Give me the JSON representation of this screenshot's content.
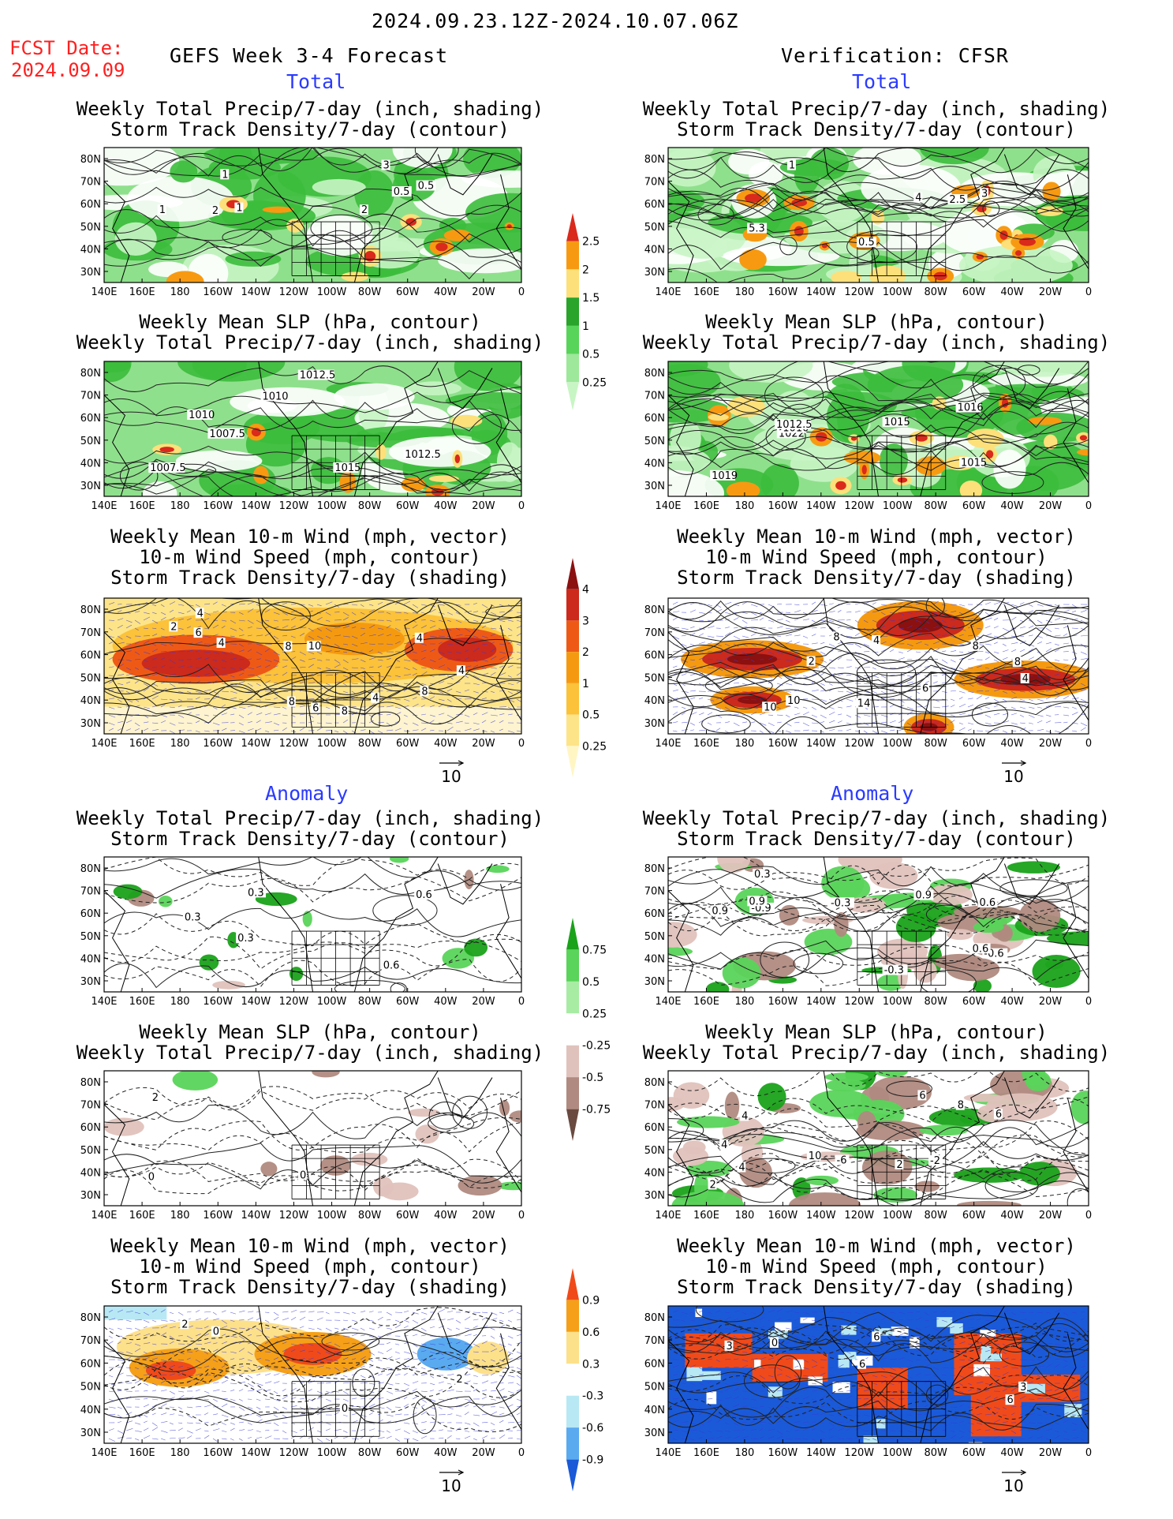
{
  "header": {
    "period": "2024.09.23.12Z-2024.10.07.06Z",
    "fcst_date_label": "FCST Date:",
    "fcst_date": "2024.09.09",
    "left_title": "GEFS Week 3-4 Forecast",
    "right_title": "Verification: CFSR"
  },
  "sections": {
    "total": "Total",
    "anomaly": "Anomaly"
  },
  "panel_titles": {
    "precip_storm": [
      "Weekly Total Precip/7-day (inch, shading)",
      "Storm Track Density/7-day (contour)"
    ],
    "slp_precip": [
      "Weekly Mean SLP (hPa, contour)",
      "Weekly Total Precip/7-day (inch, shading)"
    ],
    "wind_storm": [
      "Weekly Mean 10-m Wind (mph, vector)",
      "10-m Wind Speed (mph, contour)",
      "Storm Track Density/7-day (shading)"
    ]
  },
  "axes": {
    "lon_ticks": [
      "140E",
      "160E",
      "180",
      "160W",
      "140W",
      "120W",
      "100W",
      "80W",
      "60W",
      "40W",
      "20W",
      "0"
    ],
    "lat_ticks": [
      "80N",
      "70N",
      "60N",
      "50N",
      "40N",
      "30N"
    ]
  },
  "vector_ref": "10",
  "colorbars": {
    "total_precip": {
      "labels": [
        "2.5",
        "2",
        "1.5",
        "1",
        "0.5",
        "0.25"
      ],
      "colors": [
        "#d92a1c",
        "#f79a12",
        "#fde07a",
        "#2aa42a",
        "#58d45a",
        "#9de89a",
        "#c8f5c4"
      ]
    },
    "total_storm": {
      "labels": [
        "4",
        "3",
        "2",
        "1",
        "0.5",
        "0.25"
      ],
      "colors": [
        "#8b1010",
        "#cc2a1c",
        "#ee5a16",
        "#f59a10",
        "#fbc23a",
        "#fde488",
        "#fff6c4"
      ]
    },
    "anom_precip": {
      "labels": [
        "0.75",
        "0.5",
        "0.25",
        "-0.25",
        "-0.5",
        "-0.75"
      ],
      "colors": [
        "#1aa21a",
        "#5ad45a",
        "#a8eca4",
        "#ffffff",
        "#e0c2bc",
        "#b08a80",
        "#6a4a40"
      ]
    },
    "anom_storm": {
      "labels": [
        "0.9",
        "0.6",
        "0.3",
        "-0.3",
        "-0.6",
        "-0.9"
      ],
      "colors": [
        "#f04a1a",
        "#f5a018",
        "#fde08a",
        "#ffffff",
        "#b8e8f4",
        "#5aaaf0",
        "#1a5ad8"
      ]
    }
  },
  "contour_labels": {
    "L1": [
      "1",
      "0.5",
      "3",
      "2",
      "1",
      "0.5",
      "2",
      "1"
    ],
    "R1": [
      "5.3",
      "3",
      "4",
      "0.5",
      "1",
      "2.5"
    ],
    "L2": [
      "1010",
      "1007.5",
      "1012.5",
      "1010",
      "1007.5",
      "1012.5",
      "1015"
    ],
    "R2": [
      "1022",
      "1019",
      "1016",
      "1010",
      "1012.5",
      "1015",
      "1015"
    ],
    "L3": [
      "4",
      "4",
      "8",
      "6",
      "4",
      "4",
      "10",
      "8",
      "6",
      "4",
      "8",
      "2",
      "8"
    ],
    "R3": [
      "2",
      "4",
      "4",
      "8",
      "10",
      "8",
      "14",
      "10",
      "8",
      "6"
    ],
    "L4": [
      "0.3",
      "0.6",
      "0.6",
      "0.3",
      "0.3"
    ],
    "R4": [
      "0.9",
      "0.6",
      "0.9",
      "-0.3",
      "-0.9",
      "-0.6",
      "-0.3",
      "0.9",
      "0.3",
      "0.6"
    ],
    "L5": [
      "2",
      "0",
      "0"
    ],
    "R5": [
      "4",
      "2",
      "8",
      "10",
      "4",
      "6",
      "-2",
      "-6",
      "4",
      "2",
      "6"
    ],
    "L6": [
      "2",
      "2",
      "0",
      "0"
    ],
    "R6": [
      "0",
      "3",
      "6",
      "6",
      "3",
      "6"
    ]
  }
}
